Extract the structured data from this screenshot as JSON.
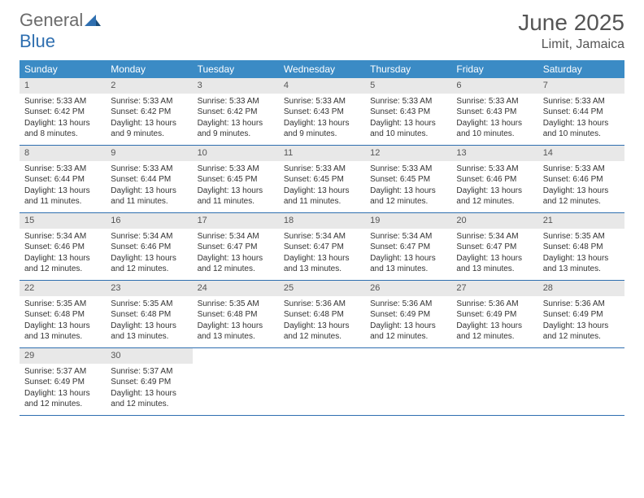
{
  "logo": {
    "text1": "General",
    "text2": "Blue"
  },
  "title": "June 2025",
  "location": "Limit, Jamaica",
  "colors": {
    "header_bg": "#3b8bc5",
    "header_text": "#ffffff",
    "daynum_bg": "#e8e8e8",
    "row_border": "#2f6fb0",
    "logo_gray": "#6b6b6b",
    "logo_blue": "#2f6fb0"
  },
  "dayNames": [
    "Sunday",
    "Monday",
    "Tuesday",
    "Wednesday",
    "Thursday",
    "Friday",
    "Saturday"
  ],
  "weeks": [
    [
      {
        "n": "1",
        "sr": "5:33 AM",
        "ss": "6:42 PM",
        "dl": "13 hours and 8 minutes."
      },
      {
        "n": "2",
        "sr": "5:33 AM",
        "ss": "6:42 PM",
        "dl": "13 hours and 9 minutes."
      },
      {
        "n": "3",
        "sr": "5:33 AM",
        "ss": "6:42 PM",
        "dl": "13 hours and 9 minutes."
      },
      {
        "n": "4",
        "sr": "5:33 AM",
        "ss": "6:43 PM",
        "dl": "13 hours and 9 minutes."
      },
      {
        "n": "5",
        "sr": "5:33 AM",
        "ss": "6:43 PM",
        "dl": "13 hours and 10 minutes."
      },
      {
        "n": "6",
        "sr": "5:33 AM",
        "ss": "6:43 PM",
        "dl": "13 hours and 10 minutes."
      },
      {
        "n": "7",
        "sr": "5:33 AM",
        "ss": "6:44 PM",
        "dl": "13 hours and 10 minutes."
      }
    ],
    [
      {
        "n": "8",
        "sr": "5:33 AM",
        "ss": "6:44 PM",
        "dl": "13 hours and 11 minutes."
      },
      {
        "n": "9",
        "sr": "5:33 AM",
        "ss": "6:44 PM",
        "dl": "13 hours and 11 minutes."
      },
      {
        "n": "10",
        "sr": "5:33 AM",
        "ss": "6:45 PM",
        "dl": "13 hours and 11 minutes."
      },
      {
        "n": "11",
        "sr": "5:33 AM",
        "ss": "6:45 PM",
        "dl": "13 hours and 11 minutes."
      },
      {
        "n": "12",
        "sr": "5:33 AM",
        "ss": "6:45 PM",
        "dl": "13 hours and 12 minutes."
      },
      {
        "n": "13",
        "sr": "5:33 AM",
        "ss": "6:46 PM",
        "dl": "13 hours and 12 minutes."
      },
      {
        "n": "14",
        "sr": "5:33 AM",
        "ss": "6:46 PM",
        "dl": "13 hours and 12 minutes."
      }
    ],
    [
      {
        "n": "15",
        "sr": "5:34 AM",
        "ss": "6:46 PM",
        "dl": "13 hours and 12 minutes."
      },
      {
        "n": "16",
        "sr": "5:34 AM",
        "ss": "6:46 PM",
        "dl": "13 hours and 12 minutes."
      },
      {
        "n": "17",
        "sr": "5:34 AM",
        "ss": "6:47 PM",
        "dl": "13 hours and 12 minutes."
      },
      {
        "n": "18",
        "sr": "5:34 AM",
        "ss": "6:47 PM",
        "dl": "13 hours and 13 minutes."
      },
      {
        "n": "19",
        "sr": "5:34 AM",
        "ss": "6:47 PM",
        "dl": "13 hours and 13 minutes."
      },
      {
        "n": "20",
        "sr": "5:34 AM",
        "ss": "6:47 PM",
        "dl": "13 hours and 13 minutes."
      },
      {
        "n": "21",
        "sr": "5:35 AM",
        "ss": "6:48 PM",
        "dl": "13 hours and 13 minutes."
      }
    ],
    [
      {
        "n": "22",
        "sr": "5:35 AM",
        "ss": "6:48 PM",
        "dl": "13 hours and 13 minutes."
      },
      {
        "n": "23",
        "sr": "5:35 AM",
        "ss": "6:48 PM",
        "dl": "13 hours and 13 minutes."
      },
      {
        "n": "24",
        "sr": "5:35 AM",
        "ss": "6:48 PM",
        "dl": "13 hours and 13 minutes."
      },
      {
        "n": "25",
        "sr": "5:36 AM",
        "ss": "6:48 PM",
        "dl": "13 hours and 12 minutes."
      },
      {
        "n": "26",
        "sr": "5:36 AM",
        "ss": "6:49 PM",
        "dl": "13 hours and 12 minutes."
      },
      {
        "n": "27",
        "sr": "5:36 AM",
        "ss": "6:49 PM",
        "dl": "13 hours and 12 minutes."
      },
      {
        "n": "28",
        "sr": "5:36 AM",
        "ss": "6:49 PM",
        "dl": "13 hours and 12 minutes."
      }
    ],
    [
      {
        "n": "29",
        "sr": "5:37 AM",
        "ss": "6:49 PM",
        "dl": "13 hours and 12 minutes."
      },
      {
        "n": "30",
        "sr": "5:37 AM",
        "ss": "6:49 PM",
        "dl": "13 hours and 12 minutes."
      },
      null,
      null,
      null,
      null,
      null
    ]
  ],
  "labels": {
    "sunrise": "Sunrise:",
    "sunset": "Sunset:",
    "daylight": "Daylight:"
  }
}
